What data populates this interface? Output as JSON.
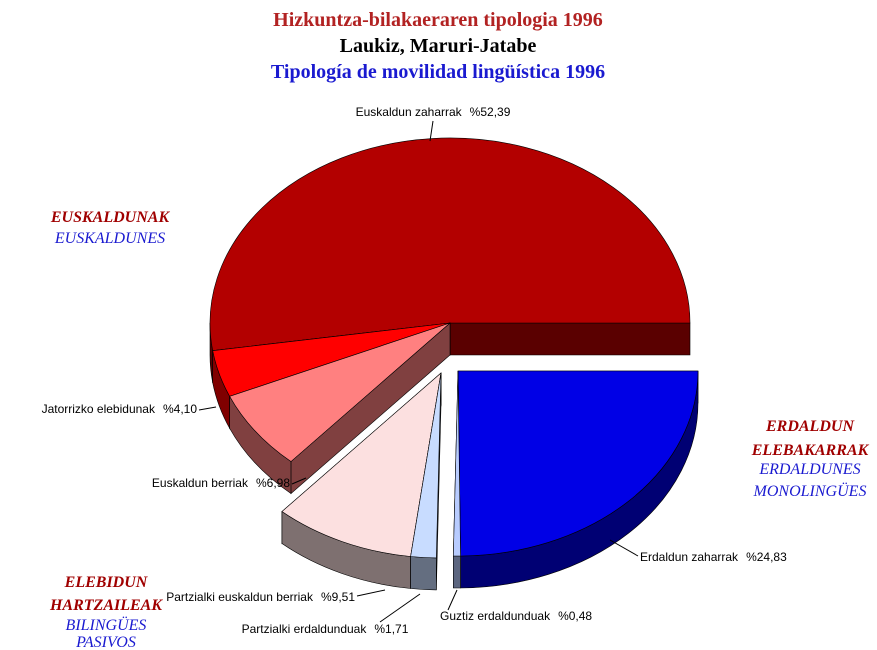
{
  "chart_data": {
    "type": "pie3d",
    "title": "Hizkuntza-bilakaeraren tipologia 1996",
    "subtitle": "Laukiz, Maruri-Jatabe",
    "subtitle2": "Tipología de movilidad lingüística 1996",
    "categories": [
      "Euskaldun zaharrak",
      "Jatorrizko elebidunak",
      "Euskaldun berriak",
      "Partzialki euskaldun berriak",
      "Partzialki erdaldunduak",
      "Guztiz erdaldunduak",
      "Erdaldun zaharrak"
    ],
    "values": [
      52.39,
      4.1,
      6.98,
      9.51,
      1.71,
      0.48,
      24.83
    ],
    "value_labels": [
      "%52,39",
      "%4,10",
      "%6,98",
      "%9,51",
      "%1,71",
      "%0,48",
      "%24,83"
    ],
    "colors": [
      "#b30000",
      "#ff0000",
      "#ff8080",
      "#fce0e0",
      "#c8dcff",
      "#b8ccff",
      "#0000e6"
    ],
    "group_labels": [
      {
        "eu": [
          "EUSKALDUNAK"
        ],
        "es": [
          "EUSKALDUNES"
        ]
      },
      {
        "eu": [
          "ERDALDUN",
          "ELEBAKARRAK"
        ],
        "es": [
          "ERDALDUNES",
          "MONOLINGÜES"
        ]
      },
      {
        "eu": [
          "ELEBIDUN",
          "HARTZAILEAK"
        ],
        "es": [
          "BILINGÜES",
          "PASIVOS"
        ]
      }
    ]
  }
}
